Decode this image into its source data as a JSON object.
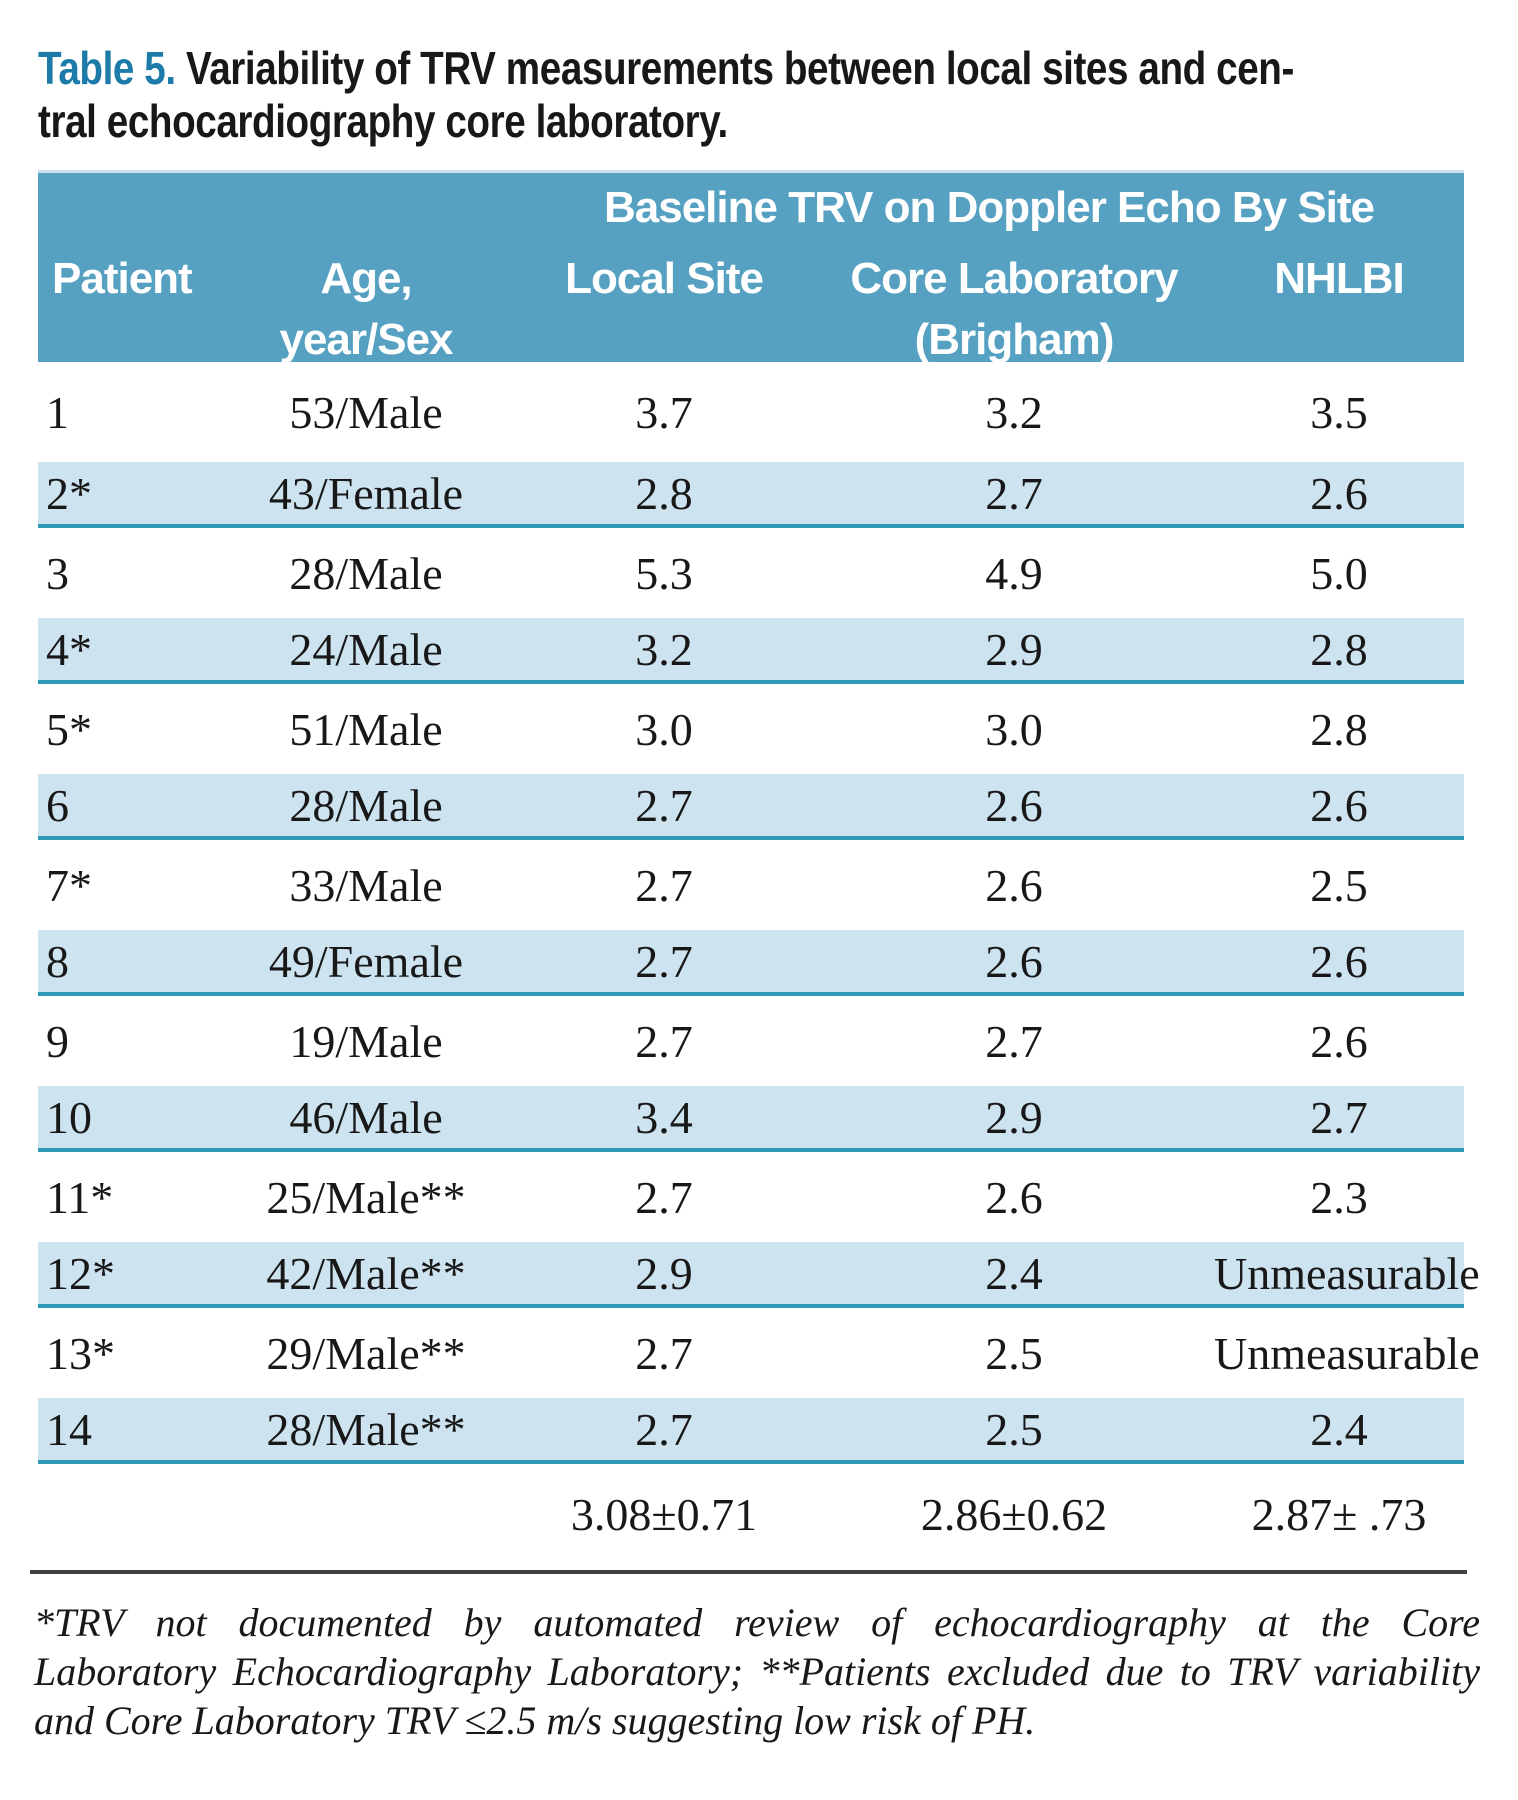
{
  "title": {
    "prefix": "Table 5.",
    "line1_rest": "Variability of TRV measurements between local sites and cen-",
    "line2": "tral echocardiography core laboratory."
  },
  "header": {
    "group": "Baseline TRV on Doppler Echo By Site",
    "patient": "Patient",
    "age_line1": "Age,",
    "age_line2": "year/Sex",
    "local": "Local Site",
    "core_line1": "Core Laboratory",
    "core_line2": "(Brigham)",
    "nhlbi": "NHLBI"
  },
  "rows": [
    {
      "patient": "1",
      "age_sex": "53/Male",
      "local": "3.7",
      "core": "3.2",
      "nhlbi": "3.5"
    },
    {
      "patient": "2*",
      "age_sex": "43/Female",
      "local": "2.8",
      "core": "2.7",
      "nhlbi": "2.6"
    },
    {
      "patient": "3",
      "age_sex": "28/Male",
      "local": "5.3",
      "core": "4.9",
      "nhlbi": "5.0"
    },
    {
      "patient": "4*",
      "age_sex": "24/Male",
      "local": "3.2",
      "core": "2.9",
      "nhlbi": "2.8"
    },
    {
      "patient": "5*",
      "age_sex": "51/Male",
      "local": "3.0",
      "core": "3.0",
      "nhlbi": "2.8"
    },
    {
      "patient": "6",
      "age_sex": "28/Male",
      "local": "2.7",
      "core": "2.6",
      "nhlbi": "2.6"
    },
    {
      "patient": "7*",
      "age_sex": "33/Male",
      "local": "2.7",
      "core": "2.6",
      "nhlbi": "2.5"
    },
    {
      "patient": "8",
      "age_sex": "49/Female",
      "local": "2.7",
      "core": "2.6",
      "nhlbi": "2.6"
    },
    {
      "patient": "9",
      "age_sex": "19/Male",
      "local": "2.7",
      "core": "2.7",
      "nhlbi": "2.6"
    },
    {
      "patient": "10",
      "age_sex": "46/Male",
      "local": "3.4",
      "core": "2.9",
      "nhlbi": "2.7"
    },
    {
      "patient": "11*",
      "age_sex": "25/Male**",
      "local": "2.7",
      "core": "2.6",
      "nhlbi": "2.3"
    },
    {
      "patient": "12*",
      "age_sex": "42/Male**",
      "local": "2.9",
      "core": "2.4",
      "nhlbi": "Unmeasurable"
    },
    {
      "patient": "13*",
      "age_sex": "29/Male**",
      "local": "2.7",
      "core": "2.5",
      "nhlbi": "Unmeasurable"
    },
    {
      "patient": "14",
      "age_sex": "28/Male**",
      "local": "2.7",
      "core": "2.5",
      "nhlbi": "2.4"
    }
  ],
  "summary": {
    "local": "3.08±0.71",
    "core": "2.86±0.62",
    "nhlbi": "2.87± .73"
  },
  "footnote": {
    "line1": "*TRV not documented by automated review of echocardiography at the Core",
    "line2": "Laboratory Echocardiography Laboratory; **Patients excluded due to TRV variability",
    "line3": "and Core Laboratory TRV ≤2.5 m/s suggesting low risk of PH."
  },
  "colors": {
    "header_bg": "#56a0c2",
    "header_top_edge": "#c9dfeb",
    "row_alt_bg": "#cde3ef",
    "row_divider": "#2e9ab8",
    "title_accent": "#1c7ba8",
    "rule": "#414141",
    "text": "#181818"
  }
}
